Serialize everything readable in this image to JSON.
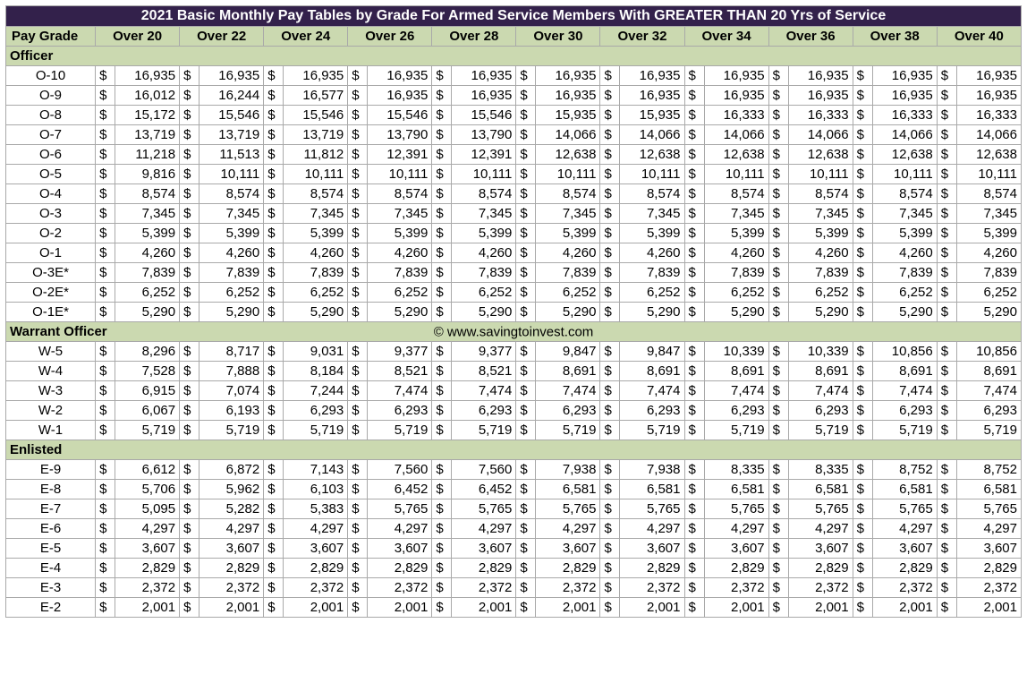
{
  "title": "2021 Basic Monthly Pay Tables by Grade For Armed Service Members With GREATER THAN 20 Yrs of Service",
  "watermark": "© www.savingtoinvest.com",
  "colors": {
    "title_bg": "#33214b",
    "title_fg": "#ffffff",
    "band_bg": "#cbd9b0",
    "border": "#a9a9a9"
  },
  "columns_label_first": "Pay Grade",
  "year_columns": [
    "Over 20",
    "Over 22",
    "Over 24",
    "Over 26",
    "Over 28",
    "Over 30",
    "Over 32",
    "Over 34",
    "Over 36",
    "Over 38",
    "Over 40"
  ],
  "sections": [
    {
      "label": "Officer",
      "rows": [
        {
          "grade": "O-10",
          "vals": [
            "16,935",
            "16,935",
            "16,935",
            "16,935",
            "16,935",
            "16,935",
            "16,935",
            "16,935",
            "16,935",
            "16,935",
            "16,935"
          ]
        },
        {
          "grade": "O-9",
          "vals": [
            "16,012",
            "16,244",
            "16,577",
            "16,935",
            "16,935",
            "16,935",
            "16,935",
            "16,935",
            "16,935",
            "16,935",
            "16,935"
          ]
        },
        {
          "grade": "O-8",
          "vals": [
            "15,172",
            "15,546",
            "15,546",
            "15,546",
            "15,546",
            "15,935",
            "15,935",
            "16,333",
            "16,333",
            "16,333",
            "16,333"
          ]
        },
        {
          "grade": "O-7",
          "vals": [
            "13,719",
            "13,719",
            "13,719",
            "13,790",
            "13,790",
            "14,066",
            "14,066",
            "14,066",
            "14,066",
            "14,066",
            "14,066"
          ]
        },
        {
          "grade": "O-6",
          "vals": [
            "11,218",
            "11,513",
            "11,812",
            "12,391",
            "12,391",
            "12,638",
            "12,638",
            "12,638",
            "12,638",
            "12,638",
            "12,638"
          ]
        },
        {
          "grade": "O-5",
          "vals": [
            "9,816",
            "10,111",
            "10,111",
            "10,111",
            "10,111",
            "10,111",
            "10,111",
            "10,111",
            "10,111",
            "10,111",
            "10,111"
          ]
        },
        {
          "grade": "O-4",
          "vals": [
            "8,574",
            "8,574",
            "8,574",
            "8,574",
            "8,574",
            "8,574",
            "8,574",
            "8,574",
            "8,574",
            "8,574",
            "8,574"
          ]
        },
        {
          "grade": "O-3",
          "vals": [
            "7,345",
            "7,345",
            "7,345",
            "7,345",
            "7,345",
            "7,345",
            "7,345",
            "7,345",
            "7,345",
            "7,345",
            "7,345"
          ]
        },
        {
          "grade": "O-2",
          "vals": [
            "5,399",
            "5,399",
            "5,399",
            "5,399",
            "5,399",
            "5,399",
            "5,399",
            "5,399",
            "5,399",
            "5,399",
            "5,399"
          ]
        },
        {
          "grade": "O-1",
          "vals": [
            "4,260",
            "4,260",
            "4,260",
            "4,260",
            "4,260",
            "4,260",
            "4,260",
            "4,260",
            "4,260",
            "4,260",
            "4,260"
          ]
        },
        {
          "grade": "O-3E*",
          "vals": [
            "7,839",
            "7,839",
            "7,839",
            "7,839",
            "7,839",
            "7,839",
            "7,839",
            "7,839",
            "7,839",
            "7,839",
            "7,839"
          ]
        },
        {
          "grade": "O-2E*",
          "vals": [
            "6,252",
            "6,252",
            "6,252",
            "6,252",
            "6,252",
            "6,252",
            "6,252",
            "6,252",
            "6,252",
            "6,252",
            "6,252"
          ]
        },
        {
          "grade": "O-1E*",
          "vals": [
            "5,290",
            "5,290",
            "5,290",
            "5,290",
            "5,290",
            "5,290",
            "5,290",
            "5,290",
            "5,290",
            "5,290",
            "5,290"
          ]
        }
      ]
    },
    {
      "label": "Warrant Officer",
      "show_watermark": true,
      "rows": [
        {
          "grade": "W-5",
          "vals": [
            "8,296",
            "8,717",
            "9,031",
            "9,377",
            "9,377",
            "9,847",
            "9,847",
            "10,339",
            "10,339",
            "10,856",
            "10,856"
          ]
        },
        {
          "grade": "W-4",
          "vals": [
            "7,528",
            "7,888",
            "8,184",
            "8,521",
            "8,521",
            "8,691",
            "8,691",
            "8,691",
            "8,691",
            "8,691",
            "8,691"
          ]
        },
        {
          "grade": "W-3",
          "vals": [
            "6,915",
            "7,074",
            "7,244",
            "7,474",
            "7,474",
            "7,474",
            "7,474",
            "7,474",
            "7,474",
            "7,474",
            "7,474"
          ]
        },
        {
          "grade": "W-2",
          "vals": [
            "6,067",
            "6,193",
            "6,293",
            "6,293",
            "6,293",
            "6,293",
            "6,293",
            "6,293",
            "6,293",
            "6,293",
            "6,293"
          ]
        },
        {
          "grade": "W-1",
          "vals": [
            "5,719",
            "5,719",
            "5,719",
            "5,719",
            "5,719",
            "5,719",
            "5,719",
            "5,719",
            "5,719",
            "5,719",
            "5,719"
          ]
        }
      ]
    },
    {
      "label": " Enlisted",
      "rows": [
        {
          "grade": "E-9",
          "vals": [
            "6,612",
            "6,872",
            "7,143",
            "7,560",
            "7,560",
            "7,938",
            "7,938",
            "8,335",
            "8,335",
            "8,752",
            "8,752"
          ]
        },
        {
          "grade": "E-8",
          "vals": [
            "5,706",
            "5,962",
            "6,103",
            "6,452",
            "6,452",
            "6,581",
            "6,581",
            "6,581",
            "6,581",
            "6,581",
            "6,581"
          ]
        },
        {
          "grade": "E-7",
          "vals": [
            "5,095",
            "5,282",
            "5,383",
            "5,765",
            "5,765",
            "5,765",
            "5,765",
            "5,765",
            "5,765",
            "5,765",
            "5,765"
          ]
        },
        {
          "grade": "E-6",
          "vals": [
            "4,297",
            "4,297",
            "4,297",
            "4,297",
            "4,297",
            "4,297",
            "4,297",
            "4,297",
            "4,297",
            "4,297",
            "4,297"
          ]
        },
        {
          "grade": "E-5",
          "vals": [
            "3,607",
            "3,607",
            "3,607",
            "3,607",
            "3,607",
            "3,607",
            "3,607",
            "3,607",
            "3,607",
            "3,607",
            "3,607"
          ]
        },
        {
          "grade": "E-4",
          "vals": [
            "2,829",
            "2,829",
            "2,829",
            "2,829",
            "2,829",
            "2,829",
            "2,829",
            "2,829",
            "2,829",
            "2,829",
            "2,829"
          ]
        },
        {
          "grade": "E-3",
          "vals": [
            "2,372",
            "2,372",
            "2,372",
            "2,372",
            "2,372",
            "2,372",
            "2,372",
            "2,372",
            "2,372",
            "2,372",
            "2,372"
          ]
        },
        {
          "grade": "E-2",
          "vals": [
            "2,001",
            "2,001",
            "2,001",
            "2,001",
            "2,001",
            "2,001",
            "2,001",
            "2,001",
            "2,001",
            "2,001",
            "2,001"
          ]
        }
      ]
    }
  ]
}
